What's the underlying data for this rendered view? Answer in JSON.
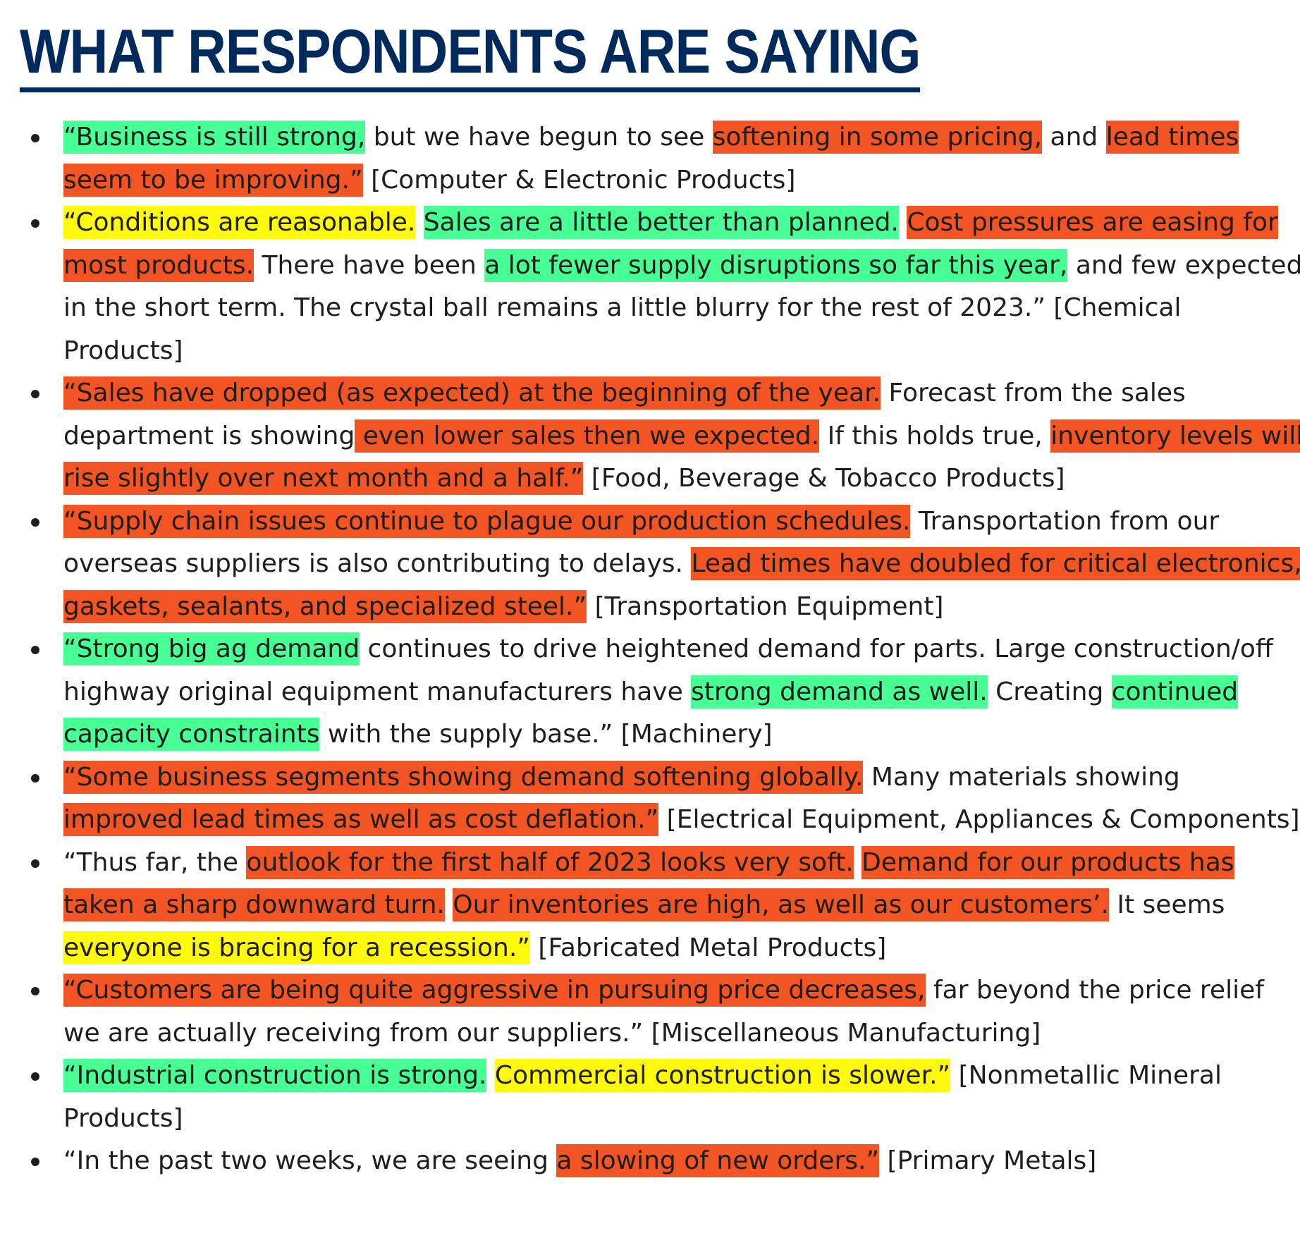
{
  "title": "WHAT RESPONDENTS ARE SAYING",
  "colors": {
    "title": "#002a5c",
    "highlight_green": "#47ff95",
    "highlight_red": "#f25424",
    "highlight_yellow": "#fffa0c",
    "text": "#1e1e1e"
  },
  "quotes": [
    [
      {
        "text": "“Business is still strong,",
        "hl": "green"
      },
      {
        "text": " but we have begun to see ",
        "hl": ""
      },
      {
        "text": "softening in some pricing,",
        "hl": "red"
      },
      {
        "text": " and ",
        "hl": ""
      },
      {
        "text": "lead times seem to be improving.”",
        "hl": "red"
      },
      {
        "text": " [Computer & Electronic Products]",
        "hl": ""
      }
    ],
    [
      {
        "text": "“Conditions are reasonable.",
        "hl": "yellow"
      },
      {
        "text": " ",
        "hl": ""
      },
      {
        "text": "Sales are a little better than planned.",
        "hl": "green"
      },
      {
        "text": " ",
        "hl": ""
      },
      {
        "text": "Cost pressures are easing for most products.",
        "hl": "red"
      },
      {
        "text": " There have been ",
        "hl": ""
      },
      {
        "text": "a lot fewer supply disruptions so far this year,",
        "hl": "green"
      },
      {
        "text": " and few expected in the short term. The crystal ball remains a little blurry for the rest of 2023.” [Chemical Products]",
        "hl": ""
      }
    ],
    [
      {
        "text": "“Sales have dropped (as expected) at the beginning of the year.",
        "hl": "red"
      },
      {
        "text": " Forecast from the sales department is showing",
        "hl": ""
      },
      {
        "text": " even lower sales then we expected.",
        "hl": "red"
      },
      {
        "text": " If this holds true, ",
        "hl": ""
      },
      {
        "text": "inventory levels will rise slightly over next month and a half.”",
        "hl": "red"
      },
      {
        "text": " [Food, Beverage & Tobacco Products]",
        "hl": ""
      }
    ],
    [
      {
        "text": "“Supply chain issues continue to plague our production schedules.",
        "hl": "red"
      },
      {
        "text": " Transportation from our overseas suppliers is also contributing to delays. ",
        "hl": ""
      },
      {
        "text": "Lead times have doubled for critical electronics, gaskets, sealants, and specialized steel.”",
        "hl": "red"
      },
      {
        "text": " [Transportation Equipment]",
        "hl": ""
      }
    ],
    [
      {
        "text": "“Strong big ag demand",
        "hl": "green"
      },
      {
        "text": " continues to drive heightened demand for parts. Large construction/off highway original equipment manufacturers have ",
        "hl": ""
      },
      {
        "text": "strong demand as well.",
        "hl": "green"
      },
      {
        "text": " Creating ",
        "hl": ""
      },
      {
        "text": "continued capacity constraints",
        "hl": "green"
      },
      {
        "text": " with the supply base.” [Machinery]",
        "hl": ""
      }
    ],
    [
      {
        "text": "“Some business segments showing demand softening globally.",
        "hl": "red"
      },
      {
        "text": " Many materials showing ",
        "hl": ""
      },
      {
        "text": "improved lead times as well as cost deflation.”",
        "hl": "red"
      },
      {
        "text": " [Electrical Equipment, Appliances & Components]",
        "hl": ""
      }
    ],
    [
      {
        "text": "“Thus far, the ",
        "hl": ""
      },
      {
        "text": "outlook for the first half of 2023 looks very soft.",
        "hl": "red"
      },
      {
        "text": " ",
        "hl": ""
      },
      {
        "text": "Demand for our products has taken a sharp downward turn.",
        "hl": "red"
      },
      {
        "text": " ",
        "hl": ""
      },
      {
        "text": "Our inventories are high, as well as our customers’.",
        "hl": "red"
      },
      {
        "text": " It seems ",
        "hl": ""
      },
      {
        "text": "everyone is bracing for a recession.”",
        "hl": "yellow"
      },
      {
        "text": " [Fabricated Metal Products]",
        "hl": ""
      }
    ],
    [
      {
        "text": "“Customers are being quite aggressive in pursuing price decreases,",
        "hl": "red"
      },
      {
        "text": " far beyond the price relief we are actually receiving from our suppliers.” [Miscellaneous Manufacturing]",
        "hl": ""
      }
    ],
    [
      {
        "text": "“Industrial construction is strong.",
        "hl": "green"
      },
      {
        "text": " ",
        "hl": ""
      },
      {
        "text": "Commercial construction is slower.”",
        "hl": "yellow"
      },
      {
        "text": " [Nonmetallic Mineral Products]",
        "hl": ""
      }
    ],
    [
      {
        "text": "“In the past two weeks, we are seeing ",
        "hl": ""
      },
      {
        "text": "a slowing of new orders.”",
        "hl": "red"
      },
      {
        "text": " [Primary Metals]",
        "hl": ""
      }
    ]
  ]
}
